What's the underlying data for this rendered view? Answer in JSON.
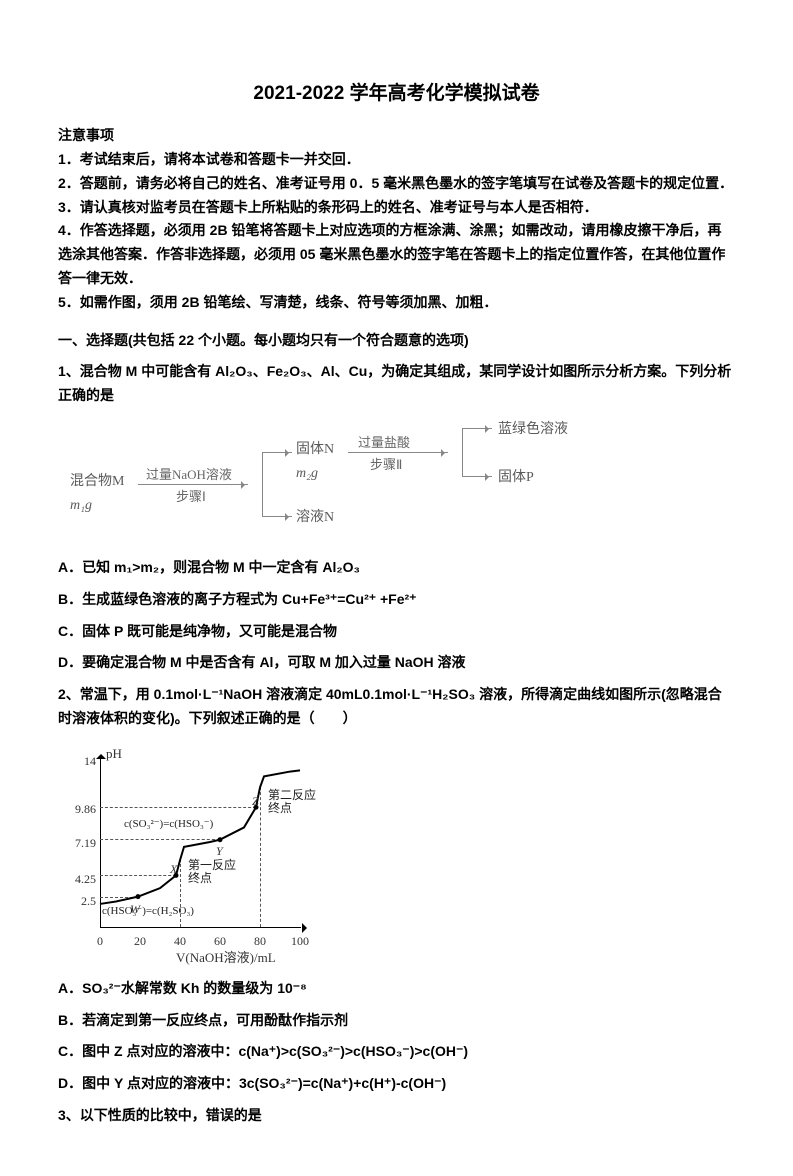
{
  "title": "2021-2022 学年高考化学模拟试卷",
  "notice_header": "注意事项",
  "notice": [
    "1．考试结束后，请将本试卷和答题卡一并交回．",
    "2．答题前，请务必将自己的姓名、准考证号用 0．5 毫米黑色墨水的签字笔填写在试卷及答题卡的规定位置．",
    "3．请认真核对监考员在答题卡上所粘贴的条形码上的姓名、准考证号与本人是否相符．",
    "4．作答选择题，必须用 2B 铅笔将答题卡上对应选项的方框涂满、涂黑；如需改动，请用橡皮擦干净后，再选涂其他答案．作答非选择题，必须用 05 毫米黑色墨水的签字笔在答题卡上的指定位置作答，在其他位置作答一律无效．",
    "5．如需作图，须用 2B 铅笔绘、写清楚，线条、符号等须加黑、加粗．"
  ],
  "section_header": "一、选择题(共包括 22 个小题。每小题均只有一个符合题意的选项)",
  "q1": {
    "stem": "1、混合物 M 中可能含有 Al₂O₃、Fe₂O₃、Al、Cu，为确定其组成，某同学设计如图所示分析方案。下列分析正确的是",
    "flow": {
      "left_box_l1": "混合物M",
      "left_box_l2": "m₁g",
      "step1_top": "过量NaOH溶液",
      "step1_bottom": "步骤Ⅰ",
      "mid_box_l1": "固体N",
      "mid_box_l2": "m₂g",
      "solN": "溶液N",
      "step2_top": "过量盐酸",
      "step2_bottom": "步骤Ⅱ",
      "out_top": "蓝绿色溶液",
      "out_bottom": "固体P",
      "line_color": "#888888",
      "text_color": "#5a5a5a"
    },
    "A": "A．已知 m₁>m₂，则混合物 M 中一定含有 Al₂O₃",
    "B": "B．生成蓝绿色溶液的离子方程式为 Cu+Fe³⁺=Cu²⁺ +Fe²⁺",
    "C": "C．固体 P 既可能是纯净物，又可能是混合物",
    "D": "D．要确定混合物 M 中是否含有 Al，可取 M 加入过量 NaOH 溶液"
  },
  "q2": {
    "stem": "2、常温下，用 0.1mol·L⁻¹NaOH 溶液滴定 40mL0.1mol·L⁻¹H₂SO₃ 溶液，所得滴定曲线如图所示(忽略混合时溶液体积的变化)。下列叙述正确的是（　　）",
    "chart": {
      "y_title": "pH",
      "x_title": "V(NaOH溶液)/mL",
      "xlim": [
        0,
        100
      ],
      "ylim": [
        0,
        14
      ],
      "x_ticks": [
        0,
        20,
        40,
        60,
        80,
        100
      ],
      "y_ticks": [
        {
          "v": 2.5,
          "label": "2.5"
        },
        {
          "v": 4.25,
          "label": "4.25"
        },
        {
          "v": 7.19,
          "label": "7.19"
        },
        {
          "v": 9.86,
          "label": "9.86"
        },
        {
          "v": 14,
          "label": "14"
        }
      ],
      "dash_x": [
        40,
        80
      ],
      "points": {
        "W": [
          19,
          2.5
        ],
        "X": [
          38,
          4.25
        ],
        "Y": [
          60,
          7.19
        ],
        "Z": [
          78,
          9.86
        ]
      },
      "curve": [
        [
          0,
          1.9
        ],
        [
          8,
          2.1
        ],
        [
          19,
          2.5
        ],
        [
          30,
          3.2
        ],
        [
          38,
          4.25
        ],
        [
          40,
          5.5
        ],
        [
          42,
          6.6
        ],
        [
          55,
          7.0
        ],
        [
          60,
          7.19
        ],
        [
          72,
          8.2
        ],
        [
          78,
          9.86
        ],
        [
          80,
          11.5
        ],
        [
          82,
          12.4
        ],
        [
          95,
          12.8
        ],
        [
          100,
          12.9
        ]
      ],
      "anno_turn1": "第一反应\n终点",
      "anno_turn2": "第二反应\n终点",
      "anno_w": "c(HSO₃⁻)=c(H₂SO₃)",
      "anno_y": "c(SO₃²⁻)=c(HSO₃⁻)",
      "axis_color": "#000000",
      "curve_color": "#000000",
      "dash_color": "#555555",
      "background_color": "#ffffff",
      "axis_fontsize": 12
    },
    "A": "A．SO₃²⁻水解常数 Kh 的数量级为 10⁻⁸",
    "B": "B．若滴定到第一反应终点，可用酚酞作指示剂",
    "C": "C．图中 Z 点对应的溶液中：c(Na⁺)>c(SO₃²⁻)>c(HSO₃⁻)>c(OH⁻)",
    "D": "D．图中 Y 点对应的溶液中：3c(SO₃²⁻)=c(Na⁺)+c(H⁺)-c(OH⁻)"
  },
  "q3": {
    "stem": "3、以下性质的比较中，错误的是"
  }
}
